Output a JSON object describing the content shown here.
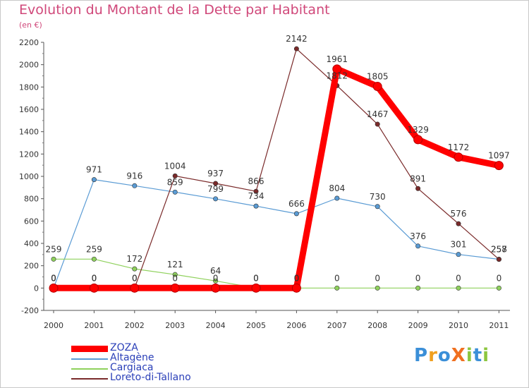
{
  "title": "Evolution du Montant de la Dette par Habitant",
  "subtitle": "(en €)",
  "logo": {
    "text": "ProXiti",
    "letters": [
      "P",
      "r",
      "o",
      "X",
      "i",
      "t",
      "i"
    ]
  },
  "chart_data": {
    "type": "line",
    "title": "Evolution du Montant de la Dette par Habitant",
    "subtitle": "(en €)",
    "xlabel": "",
    "ylabel": "",
    "x": [
      "2000",
      "2001",
      "2002",
      "2003",
      "2004",
      "2005",
      "2006",
      "2007",
      "2008",
      "2009",
      "2010",
      "2011"
    ],
    "ylim": [
      -200,
      2200
    ],
    "yticks": [
      -200,
      0,
      200,
      400,
      600,
      800,
      1000,
      1200,
      1400,
      1600,
      1800,
      2000,
      2200
    ],
    "grid": false,
    "legend_position": "bottom-left",
    "series": [
      {
        "name": "ZOZA",
        "color": "#ff0000",
        "values": [
          0,
          0,
          0,
          0,
          0,
          0,
          0,
          1961,
          1805,
          1329,
          1172,
          1097
        ],
        "labels": [
          "0",
          "0",
          "0",
          "0",
          "0",
          "0",
          "0",
          "1961",
          "1805",
          "1329",
          "1172",
          "1097"
        ]
      },
      {
        "name": "Altagène",
        "color": "#5a9bd4",
        "values": [
          0,
          971,
          916,
          859,
          799,
          734,
          666,
          804,
          730,
          376,
          301,
          258
        ],
        "labels": [
          "0",
          "971",
          "916",
          "859",
          "799",
          "734",
          "666",
          "804",
          "730",
          "376",
          "301",
          "258"
        ]
      },
      {
        "name": "Cargiaca",
        "color": "#8fd15c",
        "values": [
          259,
          259,
          172,
          121,
          64,
          0,
          0,
          0,
          0,
          0,
          0,
          0
        ],
        "labels": [
          "259",
          "259",
          "172",
          "121",
          "64",
          "0",
          "0",
          "0",
          "0",
          "0",
          "0",
          "0"
        ]
      },
      {
        "name": "Loreto-di-Tallano",
        "color": "#7a2a2a",
        "values": [
          0,
          0,
          0,
          1004,
          937,
          866,
          2142,
          1812,
          1467,
          891,
          576,
          257
        ],
        "labels": [
          "0",
          "0",
          "0",
          "1004",
          "937",
          "866",
          "2142",
          "1812",
          "1467",
          "891",
          "576",
          "257"
        ]
      }
    ]
  }
}
